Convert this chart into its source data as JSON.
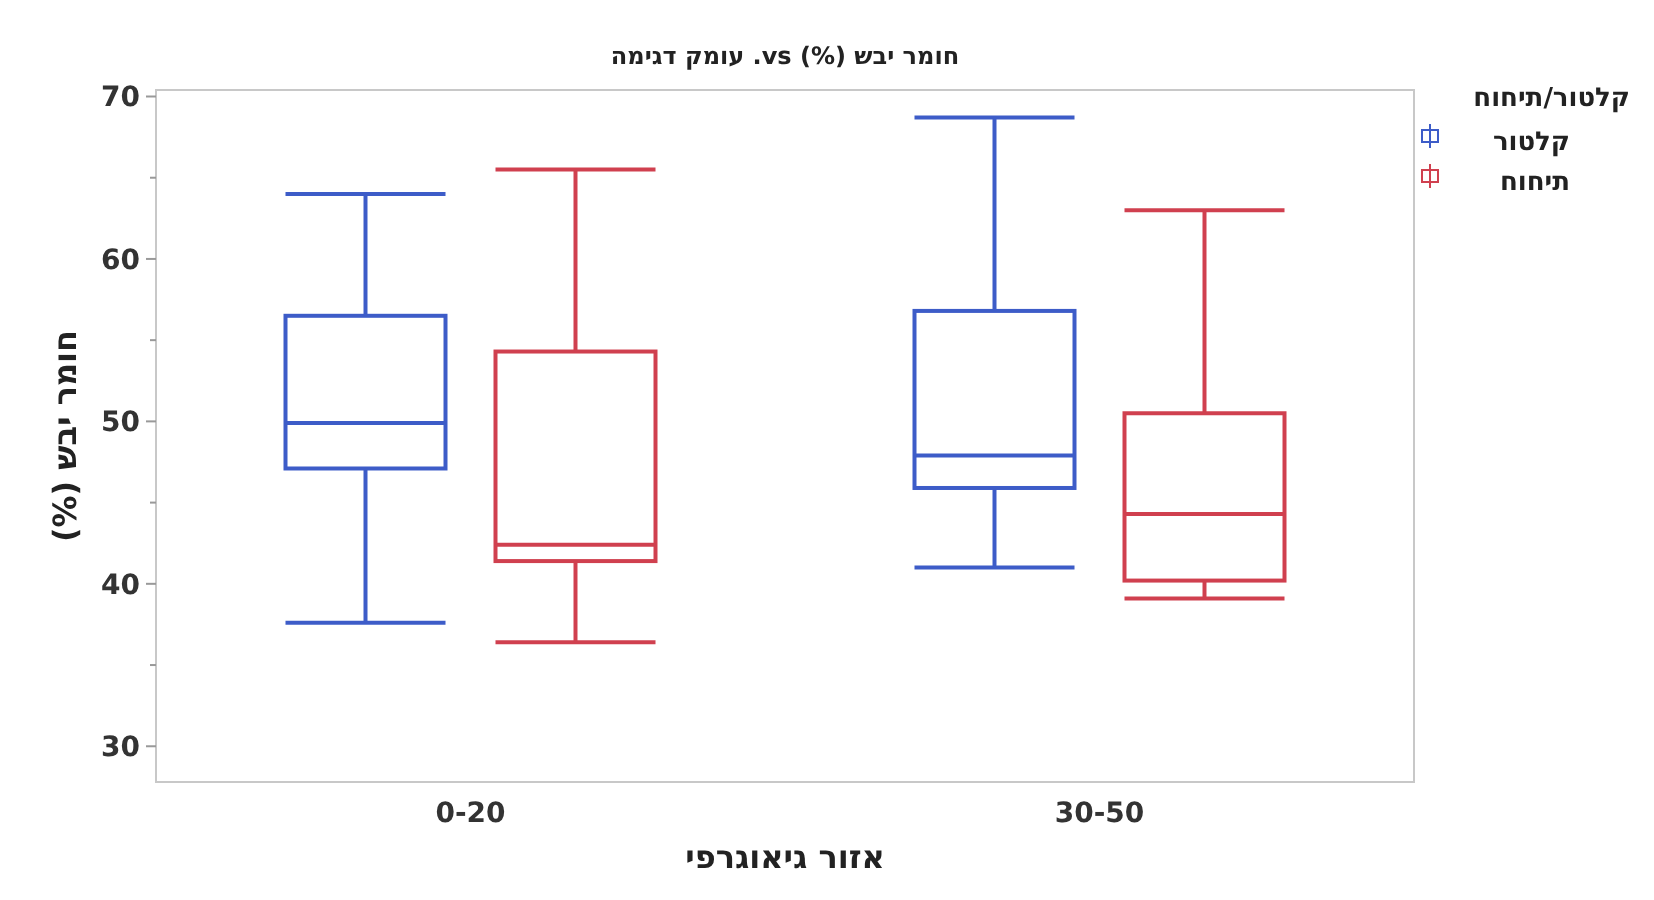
{
  "chart_data": {
    "type": "box",
    "title": "חומר יבש (%) vs. עומק דגימה",
    "xlabel": "אזור גיאוגרפי",
    "ylabel": "חומר יבש (%)",
    "legend_title": "קלטור/תיחוח",
    "categories": [
      "0-20",
      "30-50"
    ],
    "series": [
      {
        "name": "קלטור",
        "color": "#3d5cc8",
        "boxes": [
          {
            "low": 37.6,
            "q1": 47.1,
            "median": 49.9,
            "q3": 56.5,
            "high": 64.0
          },
          {
            "low": 41.0,
            "q1": 45.9,
            "median": 47.9,
            "q3": 56.8,
            "high": 68.7
          }
        ]
      },
      {
        "name": "תיחוח",
        "color": "#d0404f",
        "boxes": [
          {
            "low": 36.4,
            "q1": 41.4,
            "median": 42.4,
            "q3": 54.3,
            "high": 65.5
          },
          {
            "low": 39.1,
            "q1": 40.2,
            "median": 44.3,
            "q3": 50.5,
            "high": 63.0
          }
        ]
      }
    ],
    "ylim": [
      27.8,
      70.4
    ],
    "yticks": [
      30,
      {
        "value": 35,
        "label": null
      },
      40,
      {
        "value": 45,
        "label": null
      },
      50,
      {
        "value": 55,
        "label": null
      },
      60,
      {
        "value": 65,
        "label": null
      },
      70
    ],
    "grid": false,
    "legend": "right"
  }
}
